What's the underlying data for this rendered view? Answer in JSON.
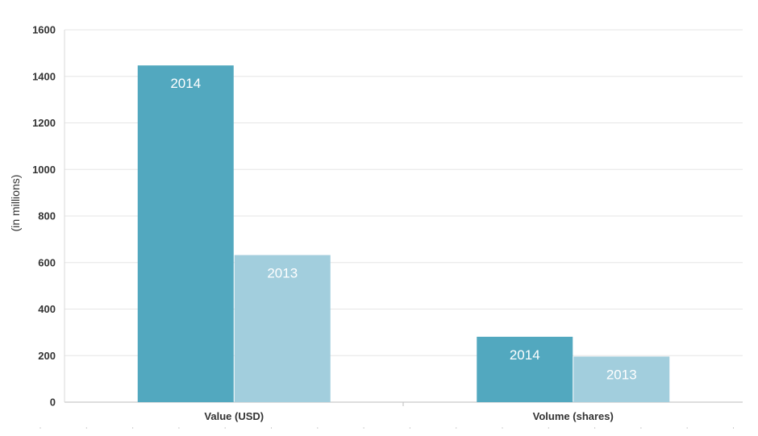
{
  "chart_data": {
    "type": "bar",
    "title": "",
    "xlabel": "",
    "ylabel": "(in millions)",
    "categories": [
      "Value (USD)",
      "Volume (shares)"
    ],
    "series": [
      {
        "name": "2014",
        "values": [
          1447,
          281
        ],
        "color": "#52a8bf"
      },
      {
        "name": "2013",
        "values": [
          632,
          196
        ],
        "color": "#a2cedd"
      }
    ],
    "ylim": [
      0,
      1600
    ],
    "yticks": [
      0,
      200,
      400,
      600,
      800,
      1000,
      1200,
      1400,
      1600
    ],
    "grid": true,
    "legend": "none",
    "data_labels": "series name inside top of each bar"
  }
}
